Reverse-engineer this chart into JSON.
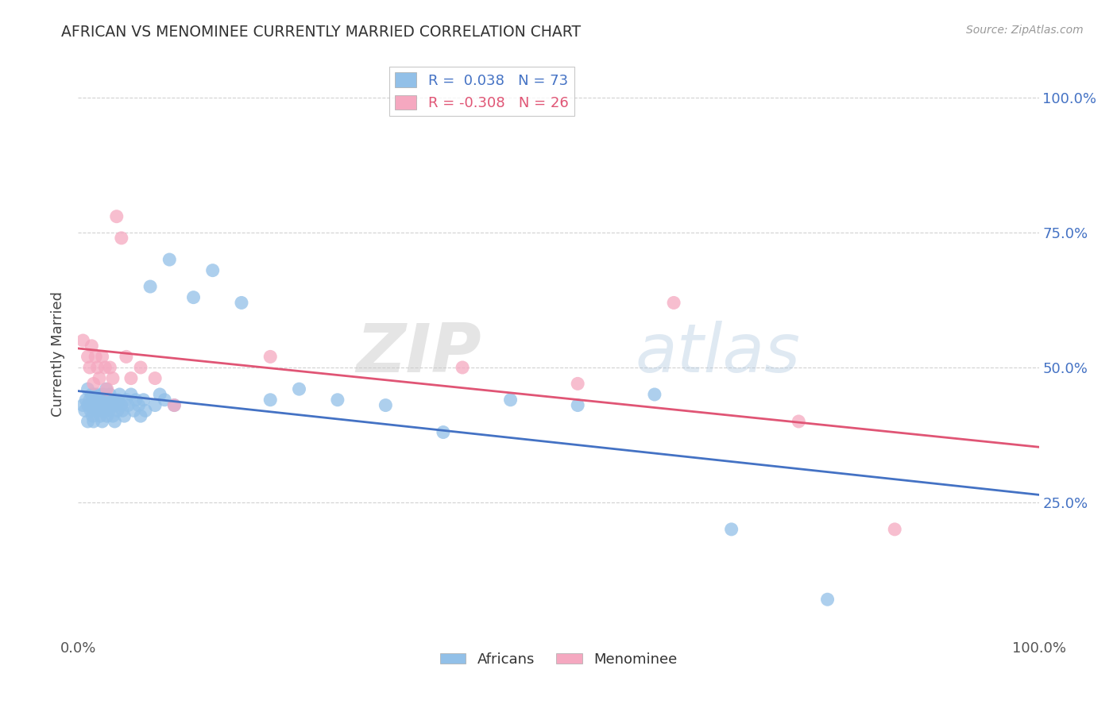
{
  "title": "AFRICAN VS MENOMINEE CURRENTLY MARRIED CORRELATION CHART",
  "source": "Source: ZipAtlas.com",
  "ylabel": "Currently Married",
  "xlim": [
    0.0,
    1.0
  ],
  "ylim": [
    0.0,
    1.05
  ],
  "watermark_zip": "ZIP",
  "watermark_atlas": "atlas",
  "africans_color": "#92c0e8",
  "menominee_color": "#f5a8c0",
  "africans_line_color": "#4472c4",
  "menominee_line_color": "#e05575",
  "background_color": "#ffffff",
  "grid_color": "#cccccc",
  "R_african": 0.038,
  "N_african": 73,
  "R_menominee": -0.308,
  "N_menominee": 26,
  "africans_x": [
    0.005,
    0.007,
    0.008,
    0.01,
    0.01,
    0.01,
    0.012,
    0.013,
    0.014,
    0.015,
    0.015,
    0.016,
    0.017,
    0.018,
    0.018,
    0.019,
    0.02,
    0.02,
    0.021,
    0.022,
    0.023,
    0.024,
    0.024,
    0.025,
    0.025,
    0.026,
    0.027,
    0.028,
    0.029,
    0.03,
    0.03,
    0.031,
    0.032,
    0.033,
    0.035,
    0.036,
    0.037,
    0.038,
    0.04,
    0.041,
    0.042,
    0.043,
    0.045,
    0.046,
    0.048,
    0.05,
    0.052,
    0.055,
    0.058,
    0.06,
    0.063,
    0.065,
    0.068,
    0.07,
    0.075,
    0.08,
    0.085,
    0.09,
    0.095,
    0.1,
    0.12,
    0.14,
    0.17,
    0.2,
    0.23,
    0.27,
    0.32,
    0.38,
    0.45,
    0.52,
    0.6,
    0.68,
    0.78
  ],
  "africans_y": [
    0.43,
    0.42,
    0.44,
    0.4,
    0.43,
    0.46,
    0.44,
    0.42,
    0.45,
    0.41,
    0.43,
    0.4,
    0.45,
    0.42,
    0.44,
    0.43,
    0.42,
    0.45,
    0.44,
    0.43,
    0.41,
    0.44,
    0.42,
    0.4,
    0.43,
    0.45,
    0.44,
    0.42,
    0.46,
    0.43,
    0.41,
    0.44,
    0.42,
    0.45,
    0.43,
    0.41,
    0.44,
    0.4,
    0.43,
    0.42,
    0.44,
    0.45,
    0.43,
    0.42,
    0.41,
    0.44,
    0.43,
    0.45,
    0.42,
    0.44,
    0.43,
    0.41,
    0.44,
    0.42,
    0.65,
    0.43,
    0.45,
    0.44,
    0.7,
    0.43,
    0.63,
    0.68,
    0.62,
    0.44,
    0.46,
    0.44,
    0.43,
    0.38,
    0.44,
    0.43,
    0.45,
    0.2,
    0.07
  ],
  "menominee_x": [
    0.005,
    0.01,
    0.012,
    0.014,
    0.016,
    0.018,
    0.02,
    0.022,
    0.025,
    0.028,
    0.03,
    0.033,
    0.036,
    0.04,
    0.045,
    0.05,
    0.055,
    0.065,
    0.08,
    0.1,
    0.2,
    0.4,
    0.52,
    0.62,
    0.75,
    0.85
  ],
  "menominee_y": [
    0.55,
    0.52,
    0.5,
    0.54,
    0.47,
    0.52,
    0.5,
    0.48,
    0.52,
    0.5,
    0.46,
    0.5,
    0.48,
    0.78,
    0.74,
    0.52,
    0.48,
    0.5,
    0.48,
    0.43,
    0.52,
    0.5,
    0.47,
    0.62,
    0.4,
    0.2
  ]
}
